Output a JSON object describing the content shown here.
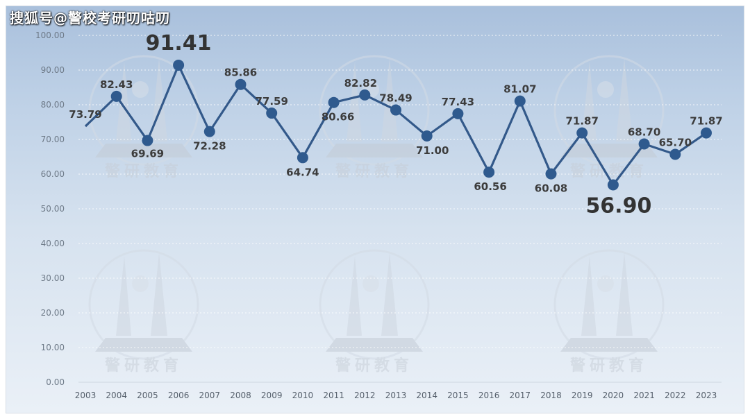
{
  "watermark": "搜狐号@警校考研叨咕叨",
  "brand_logo_text": "警研教育",
  "chart_data": {
    "type": "line",
    "categories": [
      "2003",
      "2004",
      "2005",
      "2006",
      "2007",
      "2008",
      "2009",
      "2010",
      "2011",
      "2012",
      "2013",
      "2014",
      "2015",
      "2016",
      "2017",
      "2018",
      "2019",
      "2020",
      "2021",
      "2022",
      "2023"
    ],
    "values": [
      73.79,
      82.43,
      69.69,
      91.41,
      72.28,
      85.86,
      77.59,
      64.74,
      80.66,
      82.82,
      78.49,
      71.0,
      77.43,
      60.56,
      81.07,
      60.08,
      71.87,
      56.9,
      68.7,
      65.7,
      71.87
    ],
    "value_labels": [
      "73.79",
      "82.43",
      "69.69",
      "91.41",
      "72.28",
      "85.86",
      "77.59",
      "64.74",
      "80.66",
      "82.82",
      "78.49",
      "71.00",
      "77.43",
      "60.56",
      "81.07",
      "60.08",
      "71.87",
      "56.90",
      "68.70",
      "65.70",
      "71.87"
    ],
    "yticks": [
      "0.00",
      "10.00",
      "20.00",
      "30.00",
      "40.00",
      "50.00",
      "60.00",
      "70.00",
      "80.00",
      "90.00",
      "100.00"
    ],
    "ylim": [
      0,
      100
    ],
    "highlighted": [
      "2006",
      "2020"
    ],
    "grid": true,
    "line_color": "#33598a",
    "marker_color": "#2f5a8e"
  }
}
